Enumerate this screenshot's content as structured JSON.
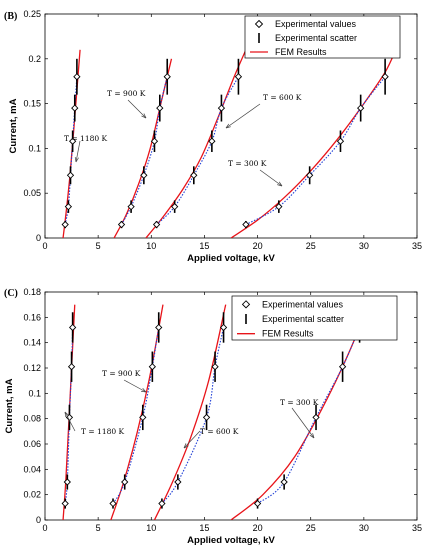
{
  "chart_data": [
    {
      "type": "line",
      "panel_label": "(B)",
      "xlabel": "Applied voltage, kV",
      "ylabel": "Current, mA",
      "xlim": [
        0,
        35
      ],
      "ylim": [
        0,
        0.25
      ],
      "xticks": [
        0,
        5,
        10,
        15,
        20,
        25,
        30,
        35
      ],
      "yticks": [
        0,
        0.05,
        0.1,
        0.15,
        0.2,
        0.25
      ],
      "xtick_labels": [
        "0",
        "5",
        "10",
        "15",
        "20",
        "25",
        "30",
        "35"
      ],
      "ytick_labels": [
        "0",
        "0.05",
        "0.1",
        "0.15",
        "0.2",
        "0.25"
      ],
      "grid": false,
      "legend_position": "top-right",
      "legend": {
        "experimental": "Experimental values",
        "scatter": "Experimental scatter",
        "fem": "FEM Results"
      },
      "series": [
        {
          "label": "T = 1180 K",
          "points": [
            [
              1.9,
              0.015
            ],
            [
              2.2,
              0.035
            ],
            [
              2.4,
              0.07
            ],
            [
              2.6,
              0.108
            ],
            [
              2.8,
              0.145
            ],
            [
              3.0,
              0.18
            ]
          ],
          "errors": [
            0.004,
            0.007,
            0.01,
            0.012,
            0.015,
            0.02
          ],
          "fem": [
            [
              1.7,
              0
            ],
            [
              2.0,
              0.03
            ],
            [
              2.35,
              0.07
            ],
            [
              2.7,
              0.12
            ],
            [
              3.1,
              0.18
            ],
            [
              3.3,
              0.21
            ]
          ]
        },
        {
          "label": "T = 900 K",
          "points": [
            [
              7.2,
              0.015
            ],
            [
              8.1,
              0.035
            ],
            [
              9.3,
              0.07
            ],
            [
              10.3,
              0.108
            ],
            [
              10.8,
              0.145
            ],
            [
              11.5,
              0.18
            ]
          ],
          "errors": [
            0.004,
            0.007,
            0.01,
            0.012,
            0.015,
            0.02
          ],
          "fem": [
            [
              6.5,
              0
            ],
            [
              7.6,
              0.025
            ],
            [
              8.8,
              0.06
            ],
            [
              9.9,
              0.1
            ],
            [
              10.9,
              0.15
            ],
            [
              11.9,
              0.2
            ]
          ]
        },
        {
          "label": "T = 600 K",
          "points": [
            [
              10.5,
              0.015
            ],
            [
              12.2,
              0.035
            ],
            [
              14.0,
              0.07
            ],
            [
              15.7,
              0.108
            ],
            [
              16.6,
              0.145
            ],
            [
              18.2,
              0.18
            ]
          ],
          "errors": [
            0.004,
            0.007,
            0.01,
            0.012,
            0.015,
            0.02
          ],
          "fem": [
            [
              9.5,
              0
            ],
            [
              11.2,
              0.025
            ],
            [
              13.0,
              0.055
            ],
            [
              14.7,
              0.09
            ],
            [
              16.3,
              0.135
            ],
            [
              17.8,
              0.18
            ],
            [
              18.9,
              0.21
            ]
          ]
        },
        {
          "label": "T = 300 K",
          "points": [
            [
              18.9,
              0.015
            ],
            [
              22.0,
              0.035
            ],
            [
              24.9,
              0.07
            ],
            [
              27.8,
              0.108
            ],
            [
              29.7,
              0.145
            ],
            [
              32.0,
              0.18
            ]
          ],
          "errors": [
            0.004,
            0.007,
            0.01,
            0.012,
            0.015,
            0.02
          ],
          "fem": [
            [
              17.5,
              0
            ],
            [
              20.0,
              0.02
            ],
            [
              22.5,
              0.045
            ],
            [
              25.0,
              0.075
            ],
            [
              27.5,
              0.11
            ],
            [
              30.0,
              0.15
            ],
            [
              32.0,
              0.185
            ],
            [
              33.0,
              0.21
            ]
          ]
        }
      ],
      "annotations": [
        "T = 1180 K",
        "T = 900 K",
        "T = 600 K",
        "T = 300 K"
      ]
    },
    {
      "type": "line",
      "panel_label": "(C)",
      "xlabel": "Applied voltage, kV",
      "ylabel": "Current, mA",
      "xlim": [
        0,
        35
      ],
      "ylim": [
        0,
        0.18
      ],
      "xticks": [
        0,
        5,
        10,
        15,
        20,
        25,
        30,
        35
      ],
      "yticks": [
        0,
        0.02,
        0.04,
        0.06,
        0.08,
        0.1,
        0.12,
        0.14,
        0.16,
        0.18
      ],
      "xtick_labels": [
        "0",
        "5",
        "10",
        "15",
        "20",
        "25",
        "30",
        "35"
      ],
      "ytick_labels": [
        "0",
        "0.02",
        "0.04",
        "0.06",
        "0.08",
        "0.1",
        "0.12",
        "0.14",
        "0.16",
        "0.18"
      ],
      "grid": false,
      "legend_position": "top-right",
      "legend": {
        "experimental": "Experimental values",
        "scatter": "Experimental scatter",
        "fem": "FEM Results"
      },
      "series": [
        {
          "label": "T = 1180 K",
          "points": [
            [
              1.9,
              0.013
            ],
            [
              2.1,
              0.03
            ],
            [
              2.3,
              0.081
            ],
            [
              2.5,
              0.121
            ],
            [
              2.6,
              0.152
            ]
          ],
          "errors": [
            0.004,
            0.006,
            0.01,
            0.012,
            0.012
          ],
          "fem": [
            [
              1.7,
              0
            ],
            [
              1.95,
              0.03
            ],
            [
              2.2,
              0.07
            ],
            [
              2.5,
              0.12
            ],
            [
              2.8,
              0.17
            ]
          ]
        },
        {
          "label": "T = 900 K",
          "points": [
            [
              6.4,
              0.013
            ],
            [
              7.5,
              0.03
            ],
            [
              9.2,
              0.081
            ],
            [
              10.1,
              0.121
            ],
            [
              10.7,
              0.152
            ]
          ],
          "errors": [
            0.004,
            0.006,
            0.01,
            0.012,
            0.012
          ],
          "fem": [
            [
              6.2,
              0
            ],
            [
              7.4,
              0.03
            ],
            [
              8.7,
              0.07
            ],
            [
              9.9,
              0.115
            ],
            [
              11.1,
              0.17
            ]
          ]
        },
        {
          "label": "T = 600 K",
          "points": [
            [
              11.0,
              0.013
            ],
            [
              12.5,
              0.03
            ],
            [
              15.2,
              0.081
            ],
            [
              16.0,
              0.121
            ],
            [
              16.8,
              0.152
            ]
          ],
          "errors": [
            0.004,
            0.006,
            0.01,
            0.012,
            0.012
          ],
          "fem": [
            [
              10.3,
              0
            ],
            [
              12.0,
              0.03
            ],
            [
              13.7,
              0.065
            ],
            [
              15.4,
              0.11
            ],
            [
              17.0,
              0.17
            ]
          ]
        },
        {
          "label": "T = 300 K",
          "points": [
            [
              20.0,
              0.013
            ],
            [
              22.5,
              0.03
            ],
            [
              25.5,
              0.081
            ],
            [
              28.0,
              0.121
            ],
            [
              29.6,
              0.152
            ]
          ],
          "errors": [
            0.004,
            0.006,
            0.01,
            0.012,
            0.012
          ],
          "fem": [
            [
              17.5,
              0
            ],
            [
              20.5,
              0.02
            ],
            [
              23.5,
              0.05
            ],
            [
              26.5,
              0.095
            ],
            [
              29.0,
              0.14
            ],
            [
              30.2,
              0.168
            ]
          ]
        }
      ],
      "annotations": [
        "T = 1180 K",
        "T = 900 K",
        "T = 600 K",
        "T = 300 K"
      ]
    }
  ]
}
